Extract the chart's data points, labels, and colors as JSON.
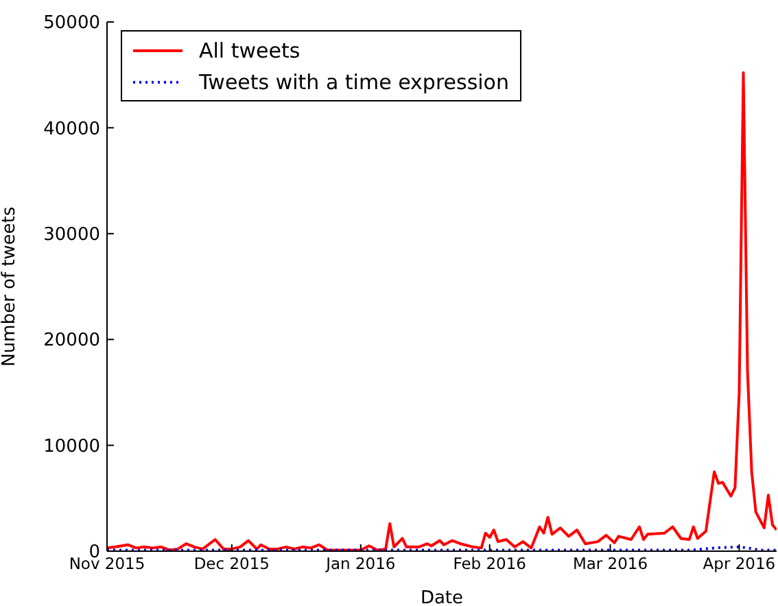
{
  "chart_data": {
    "type": "line",
    "xlabel": "Date",
    "ylabel": "Number of tweets",
    "legend": "top left",
    "marker": "none",
    "xlim": [
      "2015-11-01",
      "2016-04-10"
    ],
    "xticks": [
      {
        "value": "2015-11-01",
        "label": "Nov 2015"
      },
      {
        "value": "2015-12-01",
        "label": "Dec 2015"
      },
      {
        "value": "2016-01-01",
        "label": "Jan 2016"
      },
      {
        "value": "2016-02-01",
        "label": "Feb 2016"
      },
      {
        "value": "2016-03-01",
        "label": "Mar 2016"
      },
      {
        "value": "2016-04-01",
        "label": "Apr 2016"
      }
    ],
    "ylim": [
      0,
      50000
    ],
    "yticks": [
      0,
      10000,
      20000,
      30000,
      40000,
      50000
    ],
    "series": [
      {
        "name": "All tweets",
        "color": "#ff0000",
        "line_style": "solid",
        "x": [
          "2015-11-01",
          "2015-11-03",
          "2015-11-06",
          "2015-11-08",
          "2015-11-10",
          "2015-11-12",
          "2015-11-14",
          "2015-11-16",
          "2015-11-18",
          "2015-11-20",
          "2015-11-22",
          "2015-11-24",
          "2015-11-27",
          "2015-11-29",
          "2015-12-01",
          "2015-12-03",
          "2015-12-05",
          "2015-12-07",
          "2015-12-08",
          "2015-12-10",
          "2015-12-12",
          "2015-12-14",
          "2015-12-16",
          "2015-12-18",
          "2015-12-20",
          "2015-12-22",
          "2015-12-24",
          "2015-12-28",
          "2016-01-01",
          "2016-01-03",
          "2016-01-05",
          "2016-01-07",
          "2016-01-08",
          "2016-01-09",
          "2016-01-11",
          "2016-01-12",
          "2016-01-15",
          "2016-01-17",
          "2016-01-18",
          "2016-01-20",
          "2016-01-21",
          "2016-01-23",
          "2016-01-25",
          "2016-01-28",
          "2016-01-30",
          "2016-01-31",
          "2016-02-01",
          "2016-02-02",
          "2016-02-03",
          "2016-02-05",
          "2016-02-07",
          "2016-02-09",
          "2016-02-11",
          "2016-02-13",
          "2016-02-14",
          "2016-02-15",
          "2016-02-16",
          "2016-02-18",
          "2016-02-20",
          "2016-02-22",
          "2016-02-24",
          "2016-02-27",
          "2016-02-29",
          "2016-03-02",
          "2016-03-03",
          "2016-03-06",
          "2016-03-08",
          "2016-03-09",
          "2016-03-10",
          "2016-03-14",
          "2016-03-16",
          "2016-03-18",
          "2016-03-20",
          "2016-03-21",
          "2016-03-22",
          "2016-03-24",
          "2016-03-26",
          "2016-03-27",
          "2016-03-28",
          "2016-03-30",
          "2016-03-31",
          "2016-04-01",
          "2016-04-02",
          "2016-04-03",
          "2016-04-04",
          "2016-04-05",
          "2016-04-07",
          "2016-04-08",
          "2016-04-09",
          "2016-04-10"
        ],
        "values": [
          300,
          400,
          600,
          300,
          400,
          300,
          400,
          100,
          200,
          700,
          400,
          200,
          1100,
          200,
          200,
          400,
          1000,
          200,
          600,
          200,
          200,
          400,
          200,
          400,
          300,
          600,
          100,
          100,
          100,
          500,
          100,
          200,
          2600,
          400,
          1200,
          400,
          400,
          700,
          500,
          1000,
          600,
          1000,
          700,
          400,
          300,
          1700,
          1300,
          2000,
          900,
          1100,
          400,
          900,
          300,
          2300,
          1700,
          3200,
          1600,
          2200,
          1400,
          2000,
          700,
          900,
          1500,
          800,
          1400,
          1100,
          2300,
          1100,
          1600,
          1700,
          2300,
          1200,
          1100,
          2300,
          1200,
          1900,
          7500,
          6400,
          6500,
          5200,
          6000,
          15000,
          45200,
          17000,
          7500,
          3700,
          2200,
          5300,
          2500,
          2000
        ]
      },
      {
        "name": "Tweets with a time expression",
        "color": "#0000ff",
        "line_style": "dotted",
        "x": [
          "2015-11-01",
          "2015-12-01",
          "2016-01-01",
          "2016-02-01",
          "2016-03-01",
          "2016-03-20",
          "2016-03-26",
          "2016-04-01",
          "2016-04-03",
          "2016-04-06",
          "2016-04-10"
        ],
        "values": [
          100,
          100,
          100,
          100,
          100,
          100,
          300,
          400,
          300,
          100,
          100
        ]
      }
    ]
  }
}
